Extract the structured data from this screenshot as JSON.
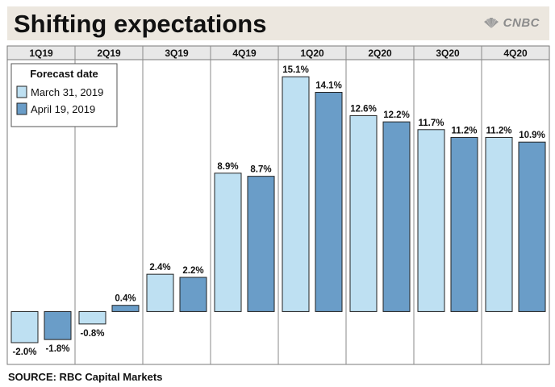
{
  "header": {
    "title": "Shifting expectations",
    "logo_text": "CNBC"
  },
  "footer": {
    "source": "SOURCE: RBC Capital Markets"
  },
  "colors": {
    "series1": "#bee0f2",
    "series2": "#6a9dc8",
    "title_bg": "#ece7df",
    "stroke": "#222222",
    "quarter_header_bg": "#e8e8e8"
  },
  "chart_data": {
    "type": "bar",
    "categories": [
      "1Q19",
      "2Q19",
      "3Q19",
      "4Q19",
      "1Q20",
      "2Q20",
      "3Q20",
      "4Q20"
    ],
    "legend_title": "Forecast date",
    "legend_position": "top-left",
    "series": [
      {
        "name": "March 31, 2019",
        "values": [
          -2.0,
          -0.8,
          2.4,
          8.9,
          15.1,
          12.6,
          11.7,
          11.2
        ],
        "labels": [
          "-2.0%",
          "-0.8%",
          "2.4%",
          "8.9%",
          "15.1%",
          "12.6%",
          "11.7%",
          "11.2%"
        ]
      },
      {
        "name": "April 19, 2019",
        "values": [
          -1.8,
          0.4,
          2.2,
          8.7,
          14.1,
          12.2,
          11.2,
          10.9
        ],
        "labels": [
          "-1.8%",
          "0.4%",
          "2.2%",
          "8.7%",
          "14.1%",
          "12.2%",
          "11.2%",
          "10.9%"
        ]
      }
    ],
    "ylim": [
      -3.4,
      16.2
    ],
    "grid": false
  }
}
